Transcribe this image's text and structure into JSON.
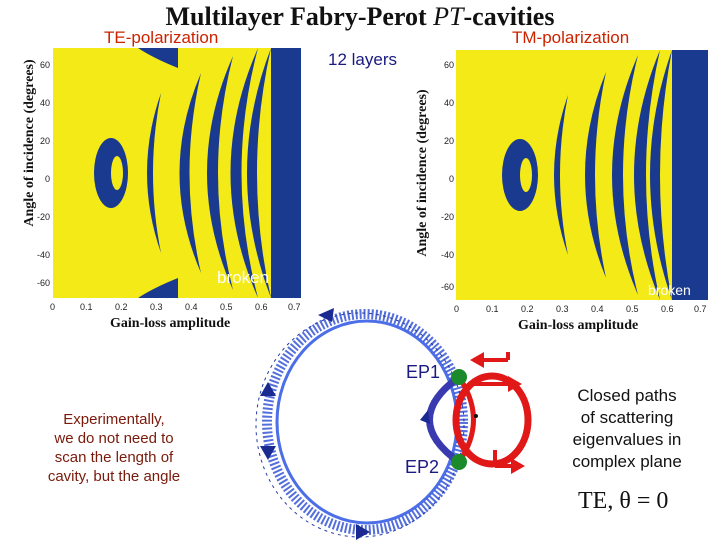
{
  "title": {
    "main": "Multilayer Fabry-Perot ",
    "pt": "PT",
    "suffix": "-cavities"
  },
  "labels": {
    "te": "TE-polarization",
    "tm": "TM-polarization",
    "layers": "12 layers",
    "broken_left": "broken",
    "broken_right": "broken",
    "ylabel": "Angle of incidence (degrees)",
    "xlabel": "Gain-loss amplitude"
  },
  "yticks": [
    "60",
    "40",
    "20",
    "0",
    "-20",
    "-40",
    "-60"
  ],
  "xticks": [
    "0",
    "0.1",
    "0.2",
    "0.3",
    "0.4",
    "0.5",
    "0.6",
    "0.7"
  ],
  "colors": {
    "yellow": "#f4ea18",
    "blue": "#1a3a8f",
    "red": "#e01818",
    "green": "#1a8a2a"
  },
  "eigen": {
    "ep1": "EP1",
    "ep2": "EP2",
    "closed_line1": "Closed paths",
    "closed_line2": "of scattering",
    "closed_line3": "eigenvalues in",
    "closed_line4": "complex plane",
    "formula": "TE, θ = 0"
  },
  "note": {
    "line1": "Experimentally,",
    "line2": "we do not need to",
    "line3": "scan the length of",
    "line4": "cavity, but the angle"
  }
}
